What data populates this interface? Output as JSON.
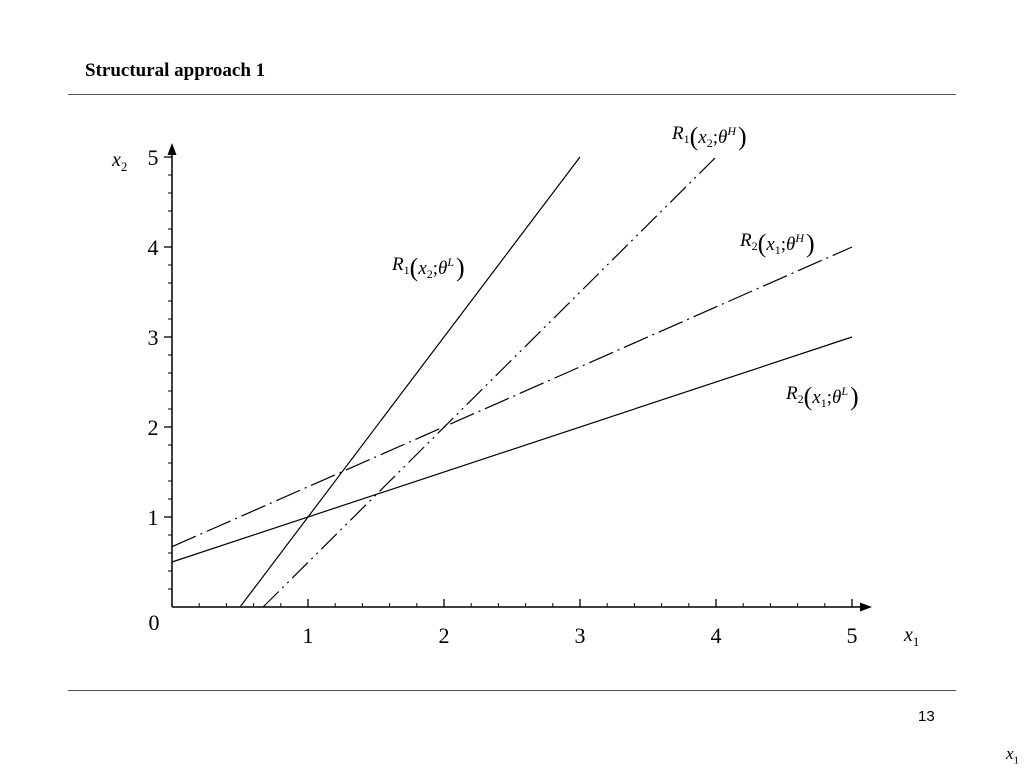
{
  "slide": {
    "title": "Structural approach 1",
    "page_number": "13",
    "corner_label": "x",
    "corner_label_sub": "1"
  },
  "chart_data": {
    "type": "line",
    "title": "",
    "xlabel": "x",
    "xlabel_sub": "1",
    "ylabel": "x",
    "ylabel_sub": "2",
    "xlim": [
      0,
      5
    ],
    "ylim": [
      0,
      5
    ],
    "xticks": [
      1,
      2,
      3,
      4,
      5
    ],
    "yticks": [
      1,
      2,
      3,
      4,
      5
    ],
    "origin_label": "0",
    "grid": false,
    "legend": "none",
    "series": [
      {
        "key": "r1-low",
        "base": "R",
        "base_sub": "1",
        "arg": "x",
        "arg_sub": "2",
        "param": "θ",
        "param_sup": "L",
        "dash": "solid",
        "points": [
          [
            0.5,
            0
          ],
          [
            3.0,
            5.0
          ]
        ]
      },
      {
        "key": "r1-high",
        "base": "R",
        "base_sub": "1",
        "arg": "x",
        "arg_sub": "2",
        "param": "θ",
        "param_sup": "H",
        "dash": "dash-dot-dot",
        "points": [
          [
            0.67,
            0
          ],
          [
            4.0,
            5.0
          ]
        ]
      },
      {
        "key": "r2-high",
        "base": "R",
        "base_sub": "2",
        "arg": "x",
        "arg_sub": "1",
        "param": "θ",
        "param_sup": "H",
        "dash": "dash-dot",
        "points": [
          [
            0,
            0.67
          ],
          [
            5.0,
            4.0
          ]
        ]
      },
      {
        "key": "r2-low",
        "base": "R",
        "base_sub": "2",
        "arg": "x",
        "arg_sub": "1",
        "param": "θ",
        "param_sup": "L",
        "dash": "solid",
        "points": [
          [
            0,
            0.5
          ],
          [
            5.0,
            3.0
          ]
        ]
      }
    ]
  }
}
